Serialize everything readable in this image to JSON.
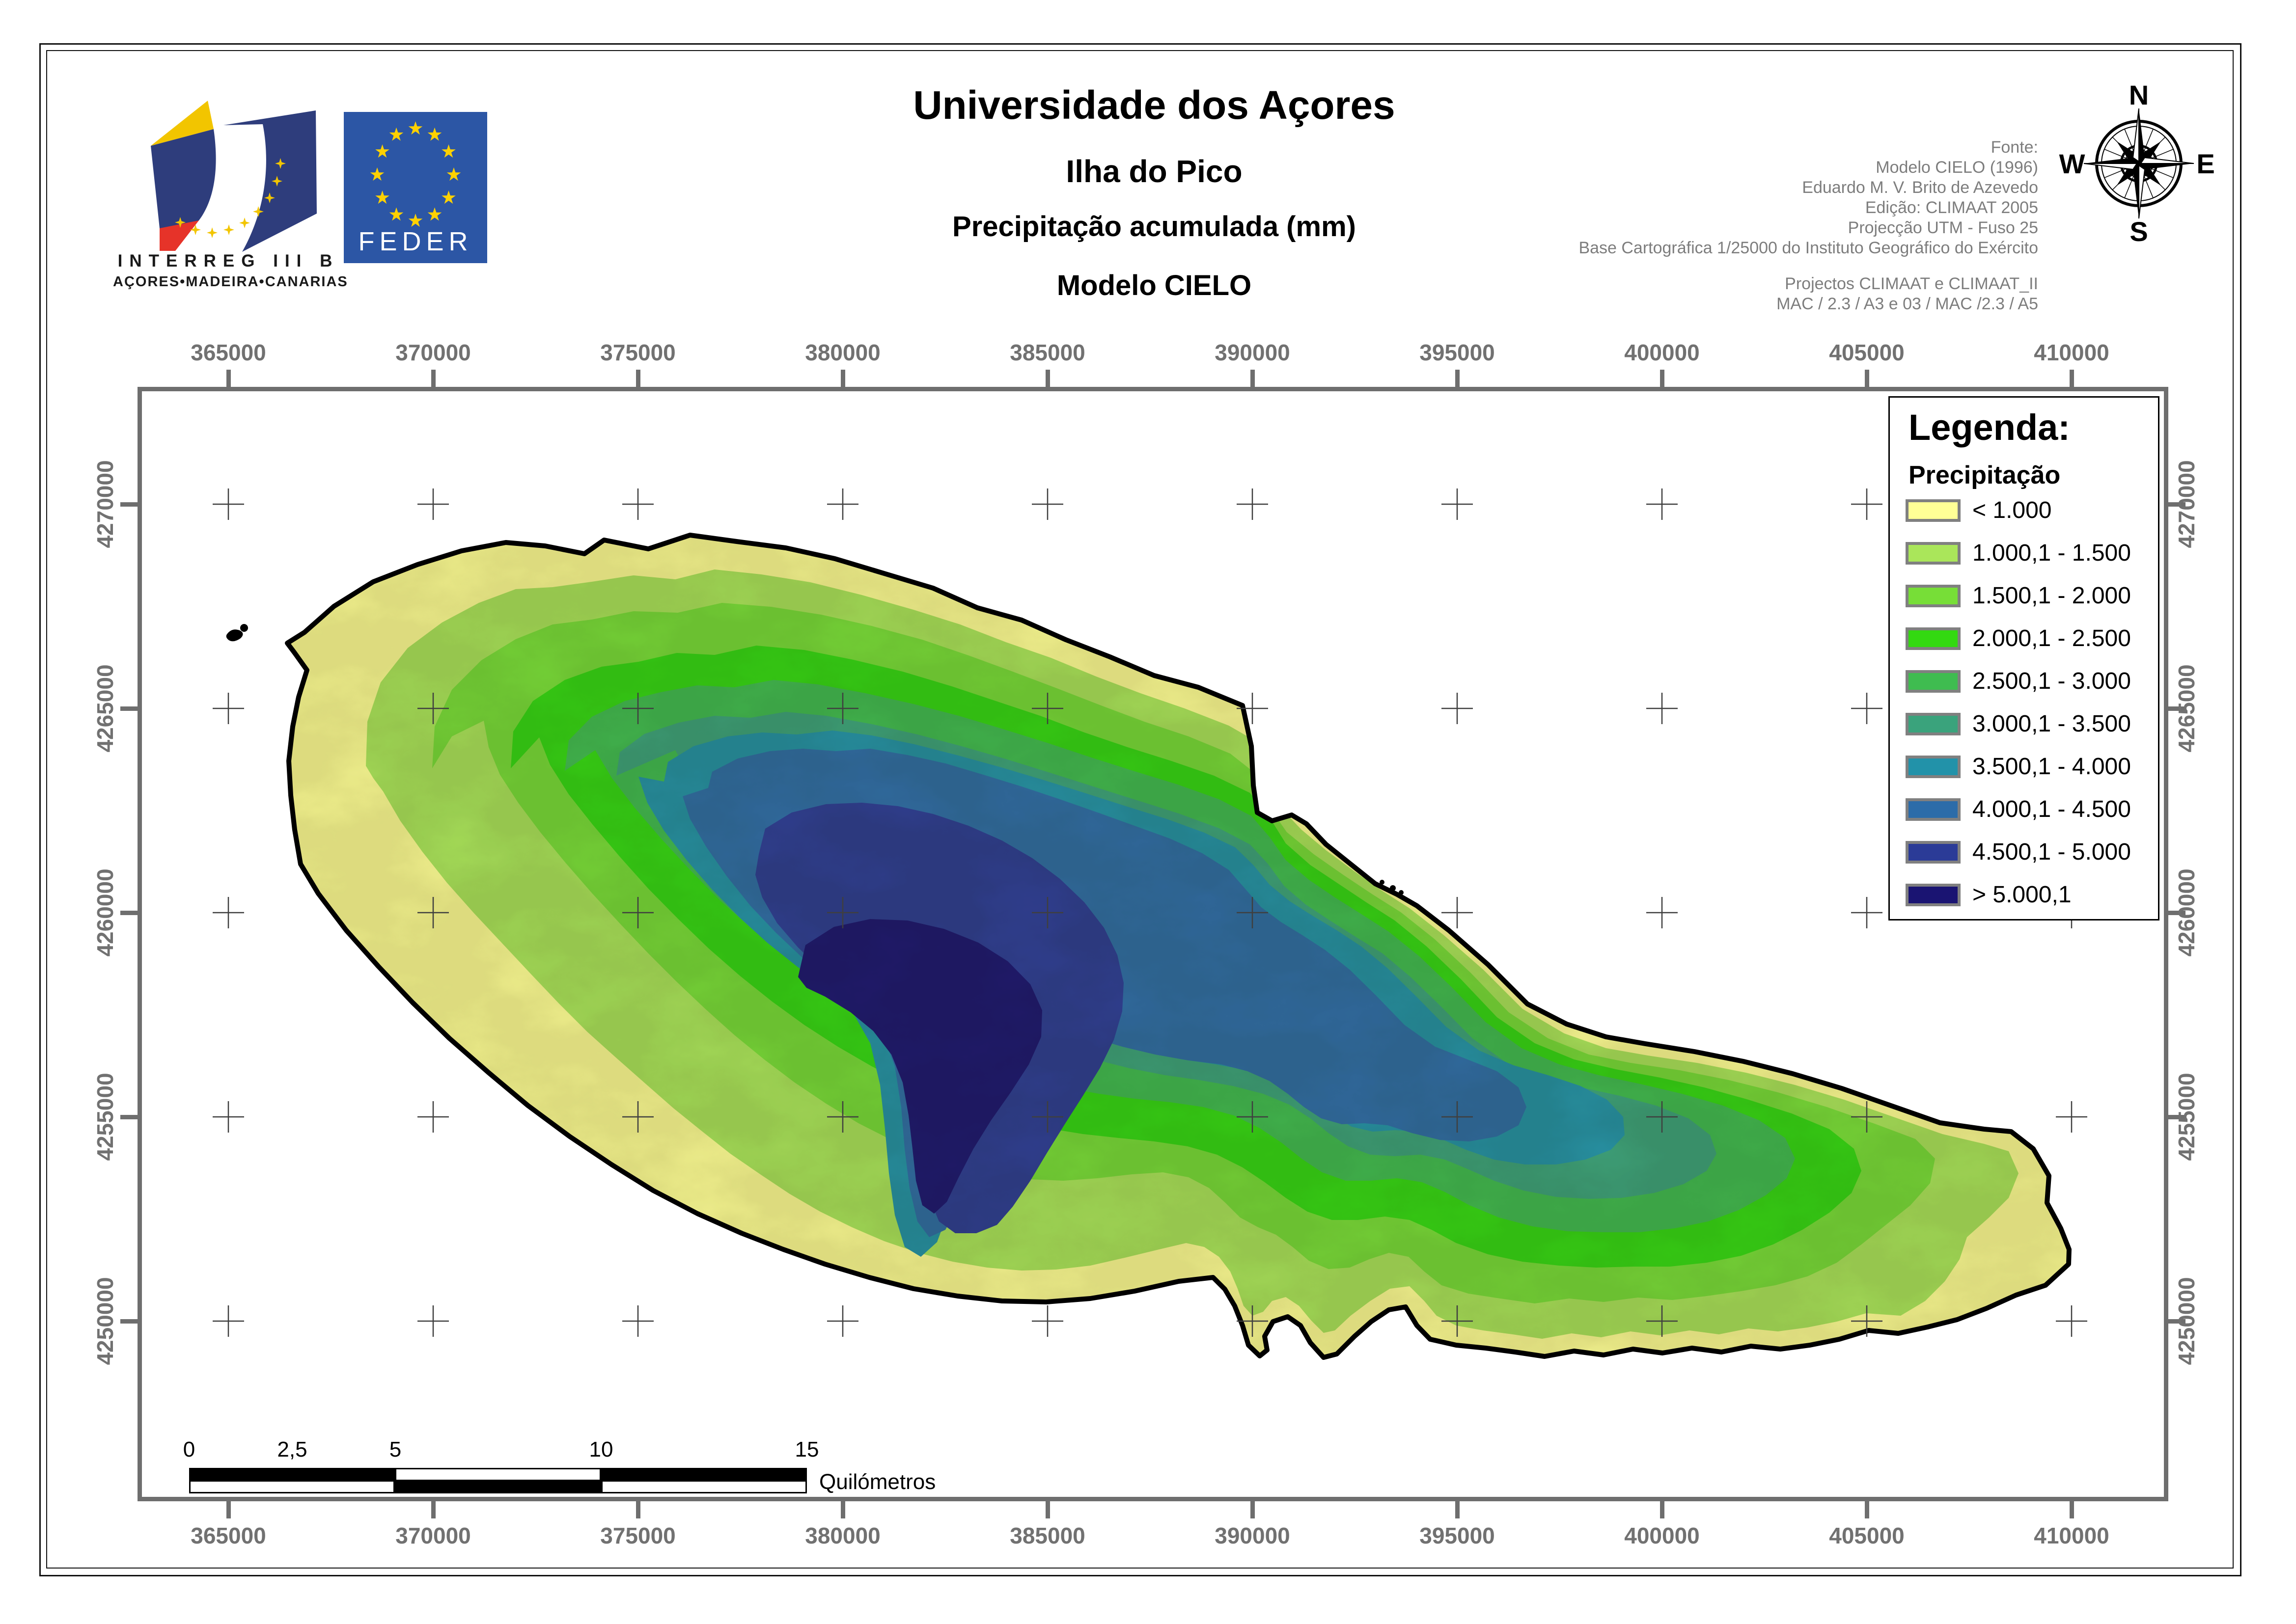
{
  "header": {
    "title": "Universidade dos Açores",
    "subtitle": "Ilha do Pico",
    "subtitle2": "Precipitação acumulada (mm)",
    "subtitle3": "Modelo CIELO",
    "source_lines": [
      "Fonte:",
      "Modelo CIELO (1996)",
      "Eduardo M. V. Brito de Azevedo",
      "Edição: CLIMAAT 2005",
      "Projecção UTM - Fuso 25",
      "Base Cartográfica 1/25000 do Instituto Geográfico do Exército"
    ],
    "project_lines": [
      "Projectos CLIMAAT e CLIMAAT_II",
      "MAC / 2.3 / A3 e 03 / MAC /2.3 / A5"
    ]
  },
  "logos": {
    "interreg": {
      "line1": "INTERREG III B",
      "line2": "AÇORES•MADEIRA•CANARIAS"
    },
    "feder": {
      "label": "FEDER",
      "bg": "#2C56A5",
      "star": "#FFD100"
    }
  },
  "compass": {
    "north": "N",
    "east": "E",
    "south": "S",
    "west": "W"
  },
  "map": {
    "x_labels": [
      "365000",
      "370000",
      "375000",
      "380000",
      "385000",
      "390000",
      "395000",
      "400000",
      "405000",
      "410000"
    ],
    "y_labels": [
      "4270000",
      "4265000",
      "4260000",
      "4255000",
      "4250000"
    ],
    "frame_color": "#6e6e6e",
    "label_color": "#717171",
    "coast_color": "#000000",
    "sea_color": "#ffffff"
  },
  "legend": {
    "title": "Legenda:",
    "subtitle": "Precipitação",
    "items": [
      {
        "label": "< 1.000",
        "color": "#FFFF96"
      },
      {
        "label": "1.000,1 - 1.500",
        "color": "#AAE65A"
      },
      {
        "label": "1.500,1 - 2.000",
        "color": "#77DE37"
      },
      {
        "label": "2.000,1 - 2.500",
        "color": "#33D911"
      },
      {
        "label": "2.500,1 - 3.000",
        "color": "#3FBC50"
      },
      {
        "label": "3.000,1 - 3.500",
        "color": "#3AA37C"
      },
      {
        "label": "3.500,1 - 4.000",
        "color": "#2292A9"
      },
      {
        "label": "4.000,1 - 4.500",
        "color": "#2C6CA9"
      },
      {
        "label": "4.500,1 - 5.000",
        "color": "#2B3B97"
      },
      {
        "label": "> 5.000,1",
        "color": "#1A1472"
      }
    ]
  },
  "scalebar": {
    "ticks": [
      "0",
      "2,5",
      "5",
      "10",
      "15"
    ],
    "unit": "Quilómetros"
  }
}
